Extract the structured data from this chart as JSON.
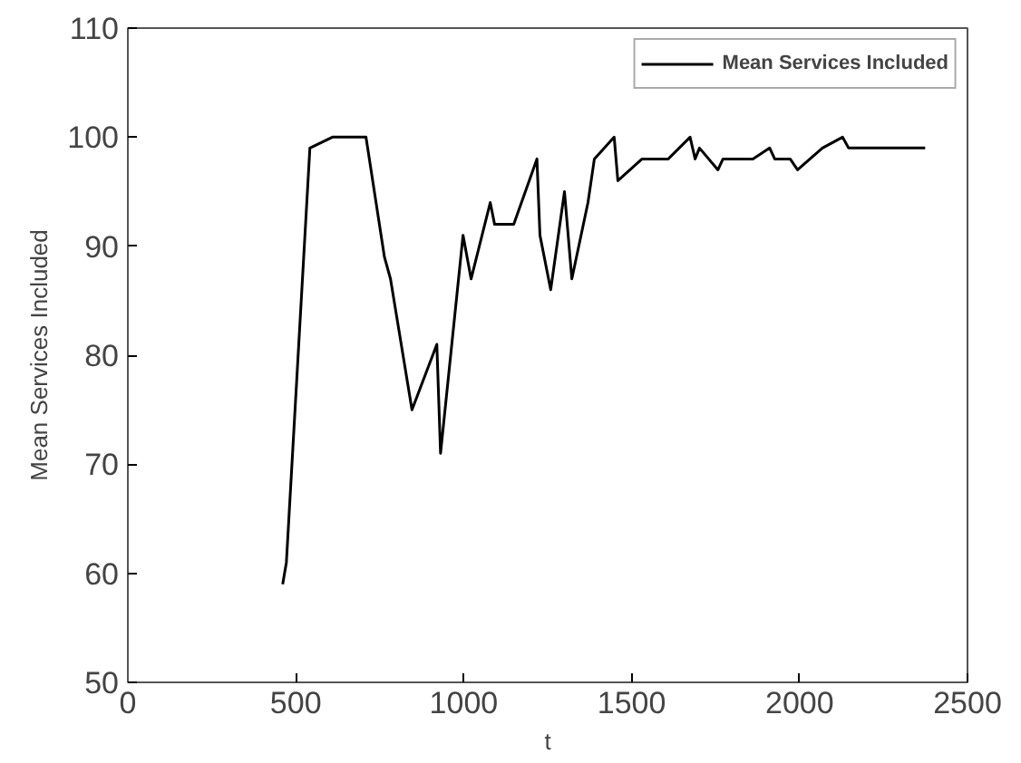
{
  "chart_data": {
    "type": "line",
    "xlabel": "t",
    "ylabel": "Mean Services Included",
    "x": [
      461,
      472,
      542,
      609,
      709,
      764,
      782,
      846,
      920,
      931,
      998,
      1022,
      1079,
      1092,
      1149,
      1218,
      1227,
      1259,
      1300,
      1322,
      1370,
      1389,
      1448,
      1459,
      1531,
      1609,
      1674,
      1689,
      1702,
      1757,
      1772,
      1861,
      1911,
      1926,
      1972,
      1994,
      2068,
      2128,
      2146,
      2374
    ],
    "series": [
      {
        "name": "Mean Services Included",
        "color": "#000000",
        "values": [
          59,
          61,
          99,
          100,
          100,
          89,
          87,
          75,
          81,
          71,
          91,
          87,
          94,
          92,
          92,
          98,
          91,
          86,
          95,
          87,
          94,
          98,
          100,
          96,
          98,
          98,
          100,
          98,
          99,
          97,
          98,
          98,
          99,
          98,
          98,
          97,
          99,
          100,
          99,
          99
        ]
      }
    ],
    "xlim": [
      0,
      2500
    ],
    "ylim": [
      50,
      110
    ],
    "xticks": [
      0,
      500,
      1000,
      1500,
      2000,
      2500
    ],
    "yticks": [
      50,
      60,
      70,
      80,
      90,
      100,
      110
    ],
    "legend": "top right",
    "marker": "none",
    "line_style": "solid"
  }
}
